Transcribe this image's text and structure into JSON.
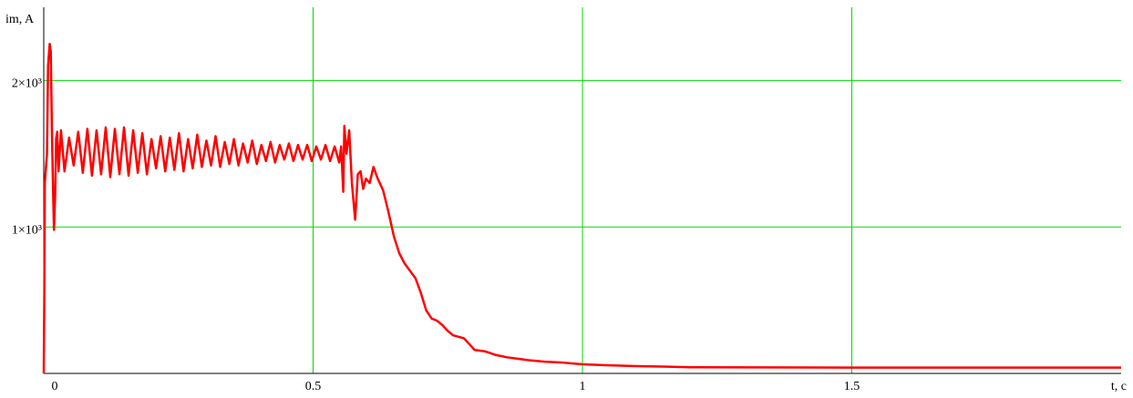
{
  "chart_data": {
    "type": "line",
    "xlabel": "t, c",
    "ylabel": "im, A",
    "color": "#ff0000",
    "grid": true,
    "grid_color": "#00dd00",
    "xlim": [
      0,
      2
    ],
    "ylim": [
      0,
      2500
    ],
    "xticks": [
      0,
      0.5,
      1,
      1.5
    ],
    "yticks": [
      {
        "value": 1000,
        "label": "1×10³"
      },
      {
        "value": 2000,
        "label": "2×10³"
      }
    ],
    "x": [
      0,
      0.001,
      0.002,
      0.006,
      0.008,
      0.011,
      0.013,
      0.015,
      0.017,
      0.019,
      0.021,
      0.023,
      0.025,
      0.0275,
      0.032,
      0.0385,
      0.047,
      0.0555,
      0.064,
      0.0725,
      0.081,
      0.0895,
      0.098,
      0.1065,
      0.115,
      0.1235,
      0.132,
      0.1405,
      0.149,
      0.1575,
      0.166,
      0.1745,
      0.183,
      0.1915,
      0.2,
      0.2085,
      0.217,
      0.2255,
      0.234,
      0.2425,
      0.251,
      0.2595,
      0.268,
      0.2765,
      0.285,
      0.2935,
      0.302,
      0.3105,
      0.319,
      0.3275,
      0.336,
      0.3445,
      0.353,
      0.3615,
      0.37,
      0.3785,
      0.387,
      0.3955,
      0.404,
      0.4125,
      0.421,
      0.4295,
      0.438,
      0.4465,
      0.455,
      0.4635,
      0.472,
      0.4805,
      0.489,
      0.4975,
      0.506,
      0.5145,
      0.523,
      0.5315,
      0.54,
      0.5485,
      0.552,
      0.556,
      0.558,
      0.562,
      0.567,
      0.572,
      0.578,
      0.583,
      0.588,
      0.593,
      0.598,
      0.605,
      0.612,
      0.62,
      0.63,
      0.64,
      0.65,
      0.66,
      0.67,
      0.68,
      0.69,
      0.7,
      0.71,
      0.72,
      0.73,
      0.74,
      0.75,
      0.76,
      0.77,
      0.78,
      0.79,
      0.8,
      0.82,
      0.84,
      0.86,
      0.88,
      0.9,
      0.93,
      0.96,
      1.0,
      1.05,
      1.1,
      1.15,
      1.2,
      1.5,
      2.0
    ],
    "values": [
      0,
      500,
      1300,
      1500,
      2100,
      2250,
      2200,
      1700,
      1300,
      980,
      1200,
      1600,
      1650,
      1380,
      1660,
      1380,
      1610,
      1420,
      1650,
      1370,
      1670,
      1350,
      1660,
      1360,
      1680,
      1340,
      1670,
      1360,
      1680,
      1350,
      1660,
      1370,
      1640,
      1360,
      1600,
      1400,
      1620,
      1380,
      1610,
      1390,
      1640,
      1380,
      1600,
      1400,
      1630,
      1410,
      1590,
      1420,
      1620,
      1410,
      1580,
      1430,
      1600,
      1420,
      1570,
      1440,
      1590,
      1430,
      1560,
      1450,
      1580,
      1440,
      1560,
      1460,
      1570,
      1450,
      1560,
      1460,
      1560,
      1450,
      1550,
      1460,
      1560,
      1450,
      1550,
      1440,
      1550,
      1240,
      1690,
      1500,
      1660,
      1300,
      1050,
      1360,
      1380,
      1260,
      1330,
      1300,
      1410,
      1330,
      1250,
      1100,
      935,
      820,
      750,
      700,
      650,
      550,
      430,
      375,
      360,
      330,
      290,
      260,
      250,
      240,
      200,
      160,
      150,
      125,
      110,
      100,
      90,
      80,
      75,
      62,
      55,
      50,
      47,
      42,
      40,
      40
    ]
  }
}
